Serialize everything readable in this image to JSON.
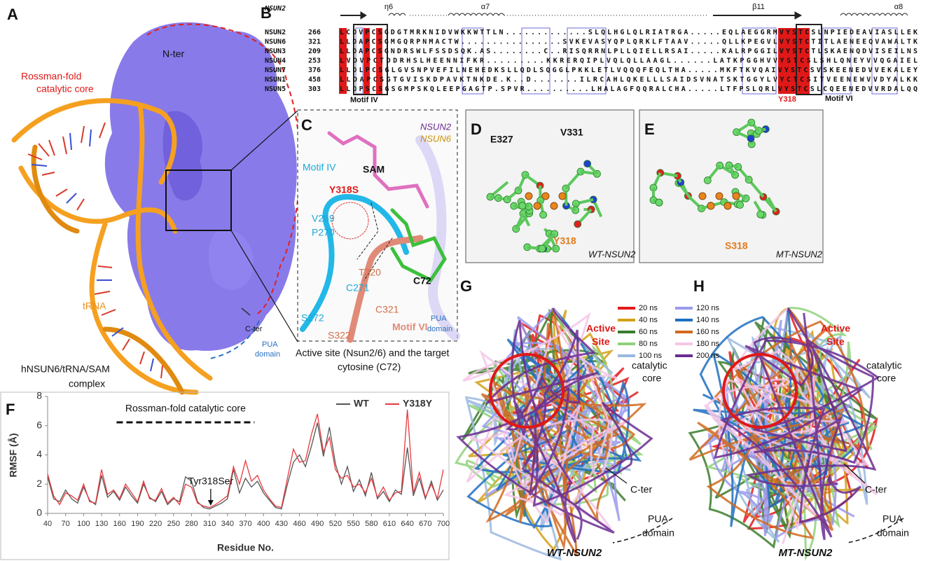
{
  "panel_labels": {
    "a": "A",
    "b": "B",
    "c": "C",
    "d": "D",
    "e": "E",
    "f": "F",
    "g": "G",
    "h": "H"
  },
  "panel_a": {
    "n_ter": "N-ter",
    "core": [
      "Rossman-fold",
      "catalytic core"
    ],
    "trna": "tRNA",
    "c_ter": "C-ter",
    "pua": [
      "PUA",
      "domain"
    ],
    "caption": [
      "hNSUN6/tRNA/SAM",
      "complex"
    ]
  },
  "panel_b": {
    "header": "NSUN2",
    "structure": [
      "η6",
      "α7",
      "β11",
      "α8"
    ],
    "rows": [
      {
        "name": "NSUN2",
        "start": 266,
        "sequence": "LCDVPCSGDGTMRKNIDVWKKWTTLN.............SLQLHGLQLRIATRGA.....EQLAEGGRMVYSTCSLNPIEDEAVIASLLEK"
      },
      {
        "name": "NSUN6",
        "start": 321,
        "sequence": "LLDAPCSGMGQRPNMACTW................SVKEVASYQPLQRKLFTAAV.....QLLKPEGVLVYSTCTITLAENEEQVAWALTK"
      },
      {
        "name": "NSUN3",
        "start": 209,
        "sequence": "LLDAPCSGNDRSWLFSSDSQK.AS........C..RISQRRNLPLLQIELLRSAI.....KALRPGGILVYSTCTLSKAENQDVISEILNS"
      },
      {
        "name": "NSUN4",
        "start": 253,
        "sequence": "LVDVPCTDDRHSLHEENNIFKR.........KKRERQIPLVQLQLLAAGL......LATKPGGHVVYSTCSLSHLQNEYVVQGAIEL"
      },
      {
        "name": "NSUN7",
        "start": 376,
        "sequence": "LLDLPCSGLGVSNPVEFILNEHEDKSLLQDLSQGGLPKKLETLVQQQFEQLTHA.....MKFTKVQAIVYSTCSVSKEENEDVVEKALEY"
      },
      {
        "name": "NSUN1",
        "start": 458,
        "sequence": "LLDAPCSGTGVISKDPAVKTNKDE.K..D.......ILRCAHLQKELLLSAIDSVNATSKTGGYLVYCTCSITVEENEWVVDYALKK"
      },
      {
        "name": "NSUN5",
        "start": 303,
        "sequence": "LLDPSCSGSGMPSKQLEEPGAGTP.SPVR..........LHALAGFQQRALCHA.....LTFPSLQRLVYSTCSLCQEENEDVVRDALQQ"
      }
    ],
    "motif_iv": "Motif IV",
    "motif_vi": "Motif VI",
    "residue": "Y318"
  },
  "panel_c": {
    "nsun2": "NSUN2",
    "nsun6": "NSUN6",
    "motif_iv": "Motif IV",
    "sam": "SAM",
    "mutation": "Y318S",
    "v269": "V269",
    "p270": "P270",
    "t320": "T320",
    "c271": "C271",
    "c321": "C321",
    "c72": "C72",
    "s272": "S272",
    "s322": "S322",
    "motif_vi": "Motif VI",
    "pua": [
      "PUA",
      "domain"
    ],
    "caption": [
      "Active site (Nsun2/6) and the target",
      "cytosine (C72)"
    ]
  },
  "panel_d": {
    "e327": "E327",
    "v331": "V331",
    "y318": "Y318",
    "tag": "WT-NSUN2"
  },
  "panel_e": {
    "s318": "S318",
    "tag": "MT-NSUN2"
  },
  "legend": [
    {
      "label": "20 ns",
      "color": "#e41a1c"
    },
    {
      "label": "40 ns",
      "color": "#d4a017"
    },
    {
      "label": "60 ns",
      "color": "#3a7d2c"
    },
    {
      "label": "80 ns",
      "color": "#8fd17a"
    },
    {
      "label": "100 ns",
      "color": "#9ab8e0"
    },
    {
      "label": "120 ns",
      "color": "#9a9aee"
    },
    {
      "label": "140 ns",
      "color": "#1f6fbf"
    },
    {
      "label": "160 ns",
      "color": "#d2691e"
    },
    {
      "label": "180 ns",
      "color": "#f5c6e6"
    },
    {
      "label": "200 ns",
      "color": "#6a2c91"
    }
  ],
  "panel_g": {
    "active": [
      "Active",
      "Site"
    ],
    "core": [
      "catalytic",
      "core"
    ],
    "c_ter": "C-ter",
    "pua": [
      "PUA",
      "domain"
    ],
    "tag": "WT-NSUN2"
  },
  "panel_h": {
    "active": [
      "Active",
      "Site"
    ],
    "core": [
      "catalytic",
      "core"
    ],
    "c_ter": "C-ter",
    "pua": [
      "PUA",
      "domain"
    ],
    "tag": "MT-NSUN2"
  },
  "chart_data": {
    "type": "line",
    "xlabel": "Residue No.",
    "ylabel": "RMSF (Å)",
    "annotations": [
      "Rossman-fold catalytic core",
      "Tyr318Ser"
    ],
    "x": [
      40,
      50,
      60,
      70,
      80,
      90,
      100,
      110,
      120,
      130,
      140,
      150,
      160,
      170,
      180,
      190,
      200,
      210,
      220,
      230,
      240,
      250,
      260,
      270,
      280,
      290,
      300,
      310,
      320,
      330,
      340,
      350,
      360,
      370,
      380,
      390,
      400,
      410,
      420,
      430,
      440,
      450,
      460,
      470,
      480,
      490,
      500,
      510,
      520,
      530,
      540,
      550,
      560,
      570,
      580,
      590,
      600,
      610,
      620,
      630,
      640,
      650,
      660,
      670,
      680,
      690,
      700
    ],
    "series": [
      {
        "name": "WT",
        "color": "#555555",
        "values": [
          2.5,
          1.0,
          0.8,
          1.6,
          1.0,
          0.7,
          1.8,
          0.9,
          0.6,
          2.6,
          1.1,
          1.5,
          0.9,
          1.8,
          1.2,
          0.7,
          2.0,
          1.1,
          0.8,
          1.5,
          0.6,
          1.0,
          0.8,
          2.5,
          2.2,
          0.8,
          0.4,
          0.3,
          0.5,
          0.7,
          1.0,
          3.0,
          1.4,
          2.4,
          1.8,
          2.2,
          1.4,
          0.9,
          0.4,
          0.3,
          2.0,
          3.5,
          4.0,
          3.2,
          4.6,
          6.2,
          3.9,
          5.9,
          3.4,
          2.0,
          3.2,
          1.5,
          2.3,
          1.2,
          2.8,
          1.0,
          1.5,
          0.8,
          1.6,
          1.3,
          4.5,
          1.2,
          2.4,
          1.0,
          2.2,
          0.9,
          1.6
        ]
      },
      {
        "name": "Y318Y",
        "color": "#e8383d",
        "values": [
          2.7,
          1.2,
          0.6,
          1.4,
          1.2,
          0.9,
          2.0,
          0.8,
          0.7,
          3.0,
          1.3,
          1.6,
          1.0,
          2.0,
          1.4,
          0.8,
          2.2,
          1.0,
          0.9,
          1.7,
          0.7,
          1.1,
          0.6,
          2.0,
          1.8,
          0.7,
          0.5,
          0.4,
          0.6,
          0.9,
          1.2,
          3.2,
          2.0,
          3.6,
          2.2,
          2.6,
          1.6,
          1.0,
          0.5,
          0.4,
          2.4,
          4.4,
          3.5,
          3.6,
          5.4,
          6.8,
          4.2,
          5.2,
          3.0,
          2.4,
          2.6,
          1.8,
          2.0,
          1.4,
          2.4,
          1.1,
          1.8,
          0.9,
          1.4,
          1.5,
          7.1,
          1.4,
          2.8,
          1.1,
          2.0,
          1.0,
          3.0
        ]
      }
    ],
    "xlim": [
      40,
      700
    ],
    "ylim": [
      0,
      8
    ],
    "xticks": [
      40,
      70,
      100,
      130,
      160,
      190,
      220,
      250,
      280,
      310,
      340,
      370,
      400,
      430,
      460,
      490,
      520,
      550,
      580,
      610,
      640,
      670,
      700
    ],
    "yticks": [
      0,
      2,
      4,
      6,
      8
    ]
  }
}
